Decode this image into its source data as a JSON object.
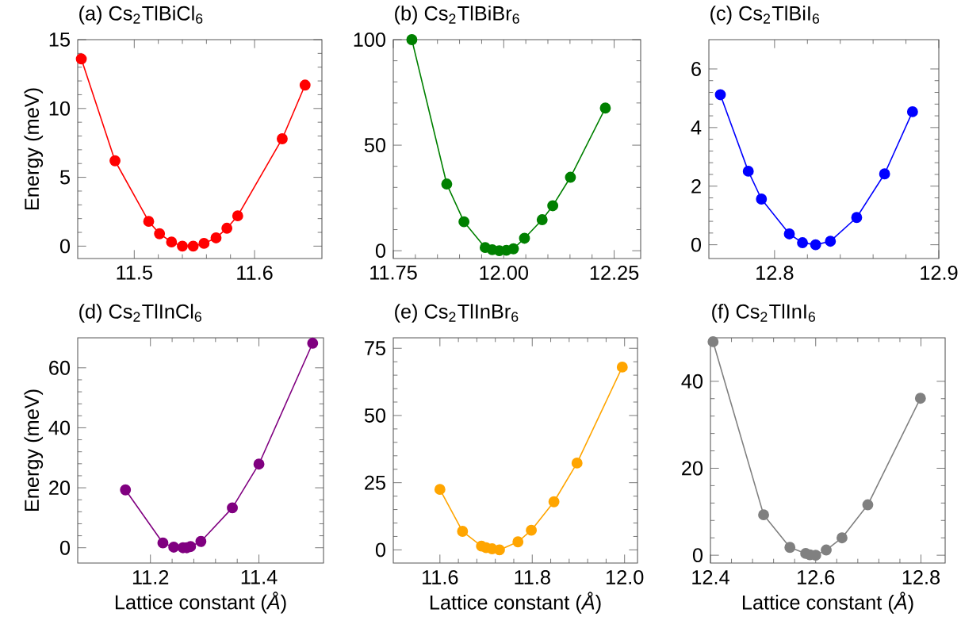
{
  "chart_data": [
    {
      "type": "line",
      "title": "(a) Cs$_{2}$TlBiCl$_{6}$",
      "ylabel": "Energy (meV)",
      "marker": "circle",
      "line_style": "solid",
      "xlim": [
        11.453,
        11.656
      ],
      "ylim": [
        -0.9,
        15
      ],
      "xticks": [
        11.5,
        11.6
      ],
      "yticks": [
        0,
        5,
        10,
        15
      ],
      "series": [
        {
          "color": "#ff0000",
          "x": [
            11.456,
            11.484,
            11.512,
            11.521,
            11.531,
            11.54,
            11.549,
            11.558,
            11.568,
            11.577,
            11.586,
            11.623,
            11.642
          ],
          "values": [
            13.6,
            6.2,
            1.8,
            0.9,
            0.3,
            0,
            0,
            0.2,
            0.6,
            1.3,
            2.2,
            7.8,
            11.7
          ]
        }
      ]
    },
    {
      "type": "line",
      "title": "(b) Cs$_{2}$TlBiBr$_{6}$",
      "marker": "circle",
      "line_style": "solid",
      "xlim": [
        11.75,
        12.31
      ],
      "ylim": [
        -3.7,
        100
      ],
      "xticks": [
        11.75,
        {
          "value": 12,
          "label": "12.00"
        },
        12.25
      ],
      "yticks": [
        0,
        50,
        100
      ],
      "series": [
        {
          "color": "#008000",
          "x": [
            11.792,
            11.871,
            11.91,
            11.958,
            11.974,
            11.99,
            12.006,
            12.022,
            12.047,
            12.087,
            12.111,
            12.151,
            12.23
          ],
          "values": [
            100,
            31.6,
            13.7,
            1.5,
            0.5,
            0,
            0.2,
            0.9,
            5.9,
            14.7,
            21.3,
            34.8,
            67.6
          ]
        }
      ]
    },
    {
      "type": "line",
      "title": "(c) Cs$_{2}$TlBiI$_{6}$",
      "marker": "circle",
      "line_style": "solid",
      "xlim": [
        12.76,
        12.9
      ],
      "ylim": [
        -0.47,
        7
      ],
      "xticks": [
        12.8,
        12.9
      ],
      "yticks": [
        0,
        2,
        4,
        6
      ],
      "series": [
        {
          "color": "#0000ff",
          "x": [
            12.767,
            12.784,
            12.792,
            12.809,
            12.817,
            12.825,
            12.834,
            12.85,
            12.867,
            12.884
          ],
          "values": [
            5.12,
            2.51,
            1.56,
            0.37,
            0.07,
            0,
            0.12,
            0.93,
            2.42,
            4.54
          ]
        }
      ]
    },
    {
      "type": "line",
      "title": "(d) Cs$_{2}$TlInCl$_{6}$",
      "ylabel": "Energy (meV)",
      "xlabel": "Lattice constant (*Å*)",
      "marker": "circle",
      "line_style": "solid",
      "xlim": [
        11.066,
        11.519
      ],
      "ylim": [
        -5.1,
        70
      ],
      "xticks": [
        11.2,
        11.4
      ],
      "yticks": [
        0,
        20,
        40,
        60
      ],
      "series": [
        {
          "color": "#800080",
          "x": [
            11.154,
            11.223,
            11.243,
            11.26,
            11.267,
            11.274,
            11.293,
            11.351,
            11.4,
            11.499
          ],
          "values": [
            19.3,
            1.6,
            0.2,
            0,
            0,
            0.4,
            2.1,
            13.3,
            27.9,
            68.2
          ]
        }
      ]
    },
    {
      "type": "line",
      "title": "(e) Cs$_{2}$TlInBr$_{6}$",
      "xlabel": "Lattice constant (*Å*)",
      "marker": "circle",
      "line_style": "solid",
      "xlim": [
        11.499,
        12.028
      ],
      "ylim": [
        -4.9,
        78.9
      ],
      "xticks": [
        11.6,
        11.8,
        {
          "value": 12,
          "label": "12.0"
        }
      ],
      "yticks": [
        0,
        25,
        50,
        75
      ],
      "series": [
        {
          "color": "#ffa500",
          "x": [
            11.6,
            11.649,
            11.69,
            11.7,
            11.713,
            11.729,
            11.769,
            11.798,
            11.847,
            11.897,
            11.995
          ],
          "values": [
            22.5,
            6.9,
            1.4,
            0.8,
            0.4,
            0,
            3.0,
            7.3,
            17.9,
            32.3,
            68.0
          ]
        }
      ]
    },
    {
      "type": "line",
      "title": "(f) Cs$_{2}$TlInI$_{6}$",
      "xlabel": "Lattice constant (*Å*)",
      "marker": "circle",
      "line_style": "solid",
      "xlim": [
        12.4,
        12.846
      ],
      "ylim": [
        -1.8,
        50
      ],
      "xticks": [
        12.4,
        12.6,
        12.8
      ],
      "yticks": [
        0,
        20,
        40
      ],
      "series": [
        {
          "color": "#808080",
          "x": [
            12.405,
            12.501,
            12.551,
            12.581,
            12.589,
            12.6,
            12.62,
            12.65,
            12.699,
            12.799
          ],
          "values": [
            49.1,
            9.3,
            1.8,
            0.4,
            0.1,
            0,
            1.2,
            4.0,
            11.6,
            36.1
          ]
        }
      ]
    }
  ]
}
